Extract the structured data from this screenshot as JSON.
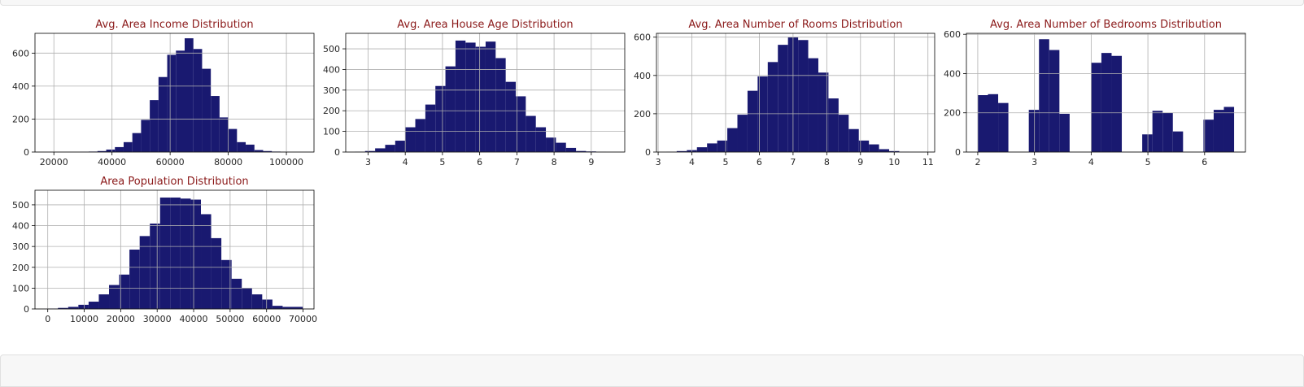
{
  "colors": {
    "bar": "#191970",
    "title": "#8b1a1a",
    "grid": "#b0b0b0",
    "axis": "#000000",
    "tick_text": "#262626",
    "cell_background": "#f7f7f7"
  },
  "chart_data": [
    {
      "type": "bar",
      "title": "Avg. Area Income Distribution",
      "grid": true,
      "xlim": [
        13500,
        109500
      ],
      "ylim": [
        0,
        720
      ],
      "xticks": [
        20000,
        40000,
        60000,
        80000,
        100000
      ],
      "yticks": [
        0,
        200,
        400,
        600
      ],
      "bins": [
        [
          29000,
          32000,
          2
        ],
        [
          32000,
          35000,
          3
        ],
        [
          35000,
          38000,
          6
        ],
        [
          38000,
          41000,
          15
        ],
        [
          41000,
          44000,
          30
        ],
        [
          44000,
          47000,
          60
        ],
        [
          47000,
          50000,
          115
        ],
        [
          50000,
          53000,
          195
        ],
        [
          53000,
          56000,
          315
        ],
        [
          56000,
          59000,
          455
        ],
        [
          59000,
          62000,
          590
        ],
        [
          62000,
          65000,
          615
        ],
        [
          65000,
          68000,
          690
        ],
        [
          68000,
          71000,
          625
        ],
        [
          71000,
          74000,
          505
        ],
        [
          74000,
          77000,
          340
        ],
        [
          77000,
          80000,
          210
        ],
        [
          80000,
          83000,
          140
        ],
        [
          83000,
          86000,
          60
        ],
        [
          86000,
          89000,
          45
        ],
        [
          89000,
          92000,
          12
        ],
        [
          92000,
          95000,
          6
        ],
        [
          95000,
          98000,
          3
        ],
        [
          98000,
          101000,
          1
        ]
      ]
    },
    {
      "type": "bar",
      "title": "Avg. Area House Age Distribution",
      "grid": true,
      "xlim": [
        2.4,
        9.9
      ],
      "ylim": [
        0,
        575
      ],
      "xticks": [
        3,
        4,
        5,
        6,
        7,
        8,
        9
      ],
      "yticks": [
        0,
        100,
        200,
        300,
        400,
        500
      ],
      "bins": [
        [
          2.65,
          2.92,
          2
        ],
        [
          2.92,
          3.19,
          5
        ],
        [
          3.19,
          3.46,
          18
        ],
        [
          3.46,
          3.73,
          35
        ],
        [
          3.73,
          4.0,
          55
        ],
        [
          4.0,
          4.27,
          120
        ],
        [
          4.27,
          4.54,
          160
        ],
        [
          4.54,
          4.81,
          230
        ],
        [
          4.81,
          5.08,
          320
        ],
        [
          5.08,
          5.35,
          415
        ],
        [
          5.35,
          5.62,
          540
        ],
        [
          5.62,
          5.89,
          530
        ],
        [
          5.89,
          6.16,
          510
        ],
        [
          6.16,
          6.43,
          535
        ],
        [
          6.43,
          6.7,
          455
        ],
        [
          6.7,
          6.97,
          340
        ],
        [
          6.97,
          7.24,
          270
        ],
        [
          7.24,
          7.51,
          175
        ],
        [
          7.51,
          7.78,
          120
        ],
        [
          7.78,
          8.05,
          70
        ],
        [
          8.05,
          8.32,
          45
        ],
        [
          8.32,
          8.59,
          20
        ],
        [
          8.59,
          8.86,
          5
        ],
        [
          8.86,
          9.13,
          3
        ],
        [
          9.13,
          9.4,
          1
        ]
      ]
    },
    {
      "type": "bar",
      "title": "Avg. Area Number of Rooms Distribution",
      "grid": true,
      "xlim": [
        2.95,
        11.2
      ],
      "ylim": [
        0,
        620
      ],
      "xticks": [
        3,
        4,
        5,
        6,
        7,
        8,
        9,
        10,
        11
      ],
      "yticks": [
        0,
        200,
        400,
        600
      ],
      "bins": [
        [
          3.25,
          3.55,
          2
        ],
        [
          3.55,
          3.85,
          5
        ],
        [
          3.85,
          4.15,
          10
        ],
        [
          4.15,
          4.45,
          25
        ],
        [
          4.45,
          4.75,
          45
        ],
        [
          4.75,
          5.05,
          60
        ],
        [
          5.05,
          5.35,
          125
        ],
        [
          5.35,
          5.65,
          195
        ],
        [
          5.65,
          5.95,
          320
        ],
        [
          5.95,
          6.25,
          395
        ],
        [
          6.25,
          6.55,
          470
        ],
        [
          6.55,
          6.85,
          560
        ],
        [
          6.85,
          7.15,
          600
        ],
        [
          7.15,
          7.45,
          585
        ],
        [
          7.45,
          7.75,
          490
        ],
        [
          7.75,
          8.05,
          415
        ],
        [
          8.05,
          8.35,
          280
        ],
        [
          8.35,
          8.65,
          195
        ],
        [
          8.65,
          8.95,
          120
        ],
        [
          8.95,
          9.25,
          60
        ],
        [
          9.25,
          9.55,
          40
        ],
        [
          9.55,
          9.85,
          15
        ],
        [
          9.85,
          10.15,
          5
        ],
        [
          10.15,
          10.45,
          2
        ]
      ]
    },
    {
      "type": "bar",
      "title": "Avg. Area Number of Bedrooms Distribution",
      "grid": true,
      "xlim": [
        1.8,
        6.72
      ],
      "ylim": [
        0,
        605
      ],
      "xticks": [
        2,
        3,
        4,
        5,
        6
      ],
      "yticks": [
        0,
        200,
        400,
        600
      ],
      "bins": [
        [
          2.0,
          2.18,
          290
        ],
        [
          2.18,
          2.36,
          295
        ],
        [
          2.36,
          2.54,
          250
        ],
        [
          2.9,
          3.08,
          215
        ],
        [
          3.08,
          3.26,
          575
        ],
        [
          3.26,
          3.44,
          520
        ],
        [
          3.44,
          3.62,
          195
        ],
        [
          4.0,
          4.18,
          455
        ],
        [
          4.18,
          4.36,
          505
        ],
        [
          4.36,
          4.54,
          490
        ],
        [
          4.9,
          5.08,
          90
        ],
        [
          5.08,
          5.26,
          210
        ],
        [
          5.26,
          5.44,
          200
        ],
        [
          5.44,
          5.62,
          105
        ],
        [
          5.98,
          6.16,
          165
        ],
        [
          6.16,
          6.34,
          215
        ],
        [
          6.34,
          6.52,
          230
        ]
      ]
    },
    {
      "type": "bar",
      "title": "Area Population Distribution",
      "grid": true,
      "xlim": [
        -3500,
        73000
      ],
      "ylim": [
        0,
        570
      ],
      "xticks": [
        0,
        10000,
        20000,
        30000,
        40000,
        50000,
        60000,
        70000
      ],
      "yticks": [
        0,
        100,
        200,
        300,
        400,
        500
      ],
      "bins": [
        [
          0,
          2800,
          2
        ],
        [
          2800,
          5600,
          5
        ],
        [
          5600,
          8400,
          10
        ],
        [
          8400,
          11200,
          20
        ],
        [
          11200,
          14000,
          35
        ],
        [
          14000,
          16800,
          70
        ],
        [
          16800,
          19600,
          115
        ],
        [
          19600,
          22400,
          165
        ],
        [
          22400,
          25200,
          285
        ],
        [
          25200,
          28000,
          350
        ],
        [
          28000,
          30800,
          410
        ],
        [
          30800,
          33600,
          535
        ],
        [
          33600,
          36400,
          535
        ],
        [
          36400,
          39200,
          530
        ],
        [
          39200,
          42000,
          525
        ],
        [
          42000,
          44800,
          455
        ],
        [
          44800,
          47600,
          340
        ],
        [
          47600,
          50400,
          235
        ],
        [
          50400,
          53200,
          145
        ],
        [
          53200,
          56000,
          100
        ],
        [
          56000,
          58800,
          70
        ],
        [
          58800,
          61600,
          45
        ],
        [
          61600,
          64400,
          15
        ],
        [
          64400,
          67200,
          10
        ],
        [
          67200,
          70000,
          10
        ]
      ]
    }
  ]
}
